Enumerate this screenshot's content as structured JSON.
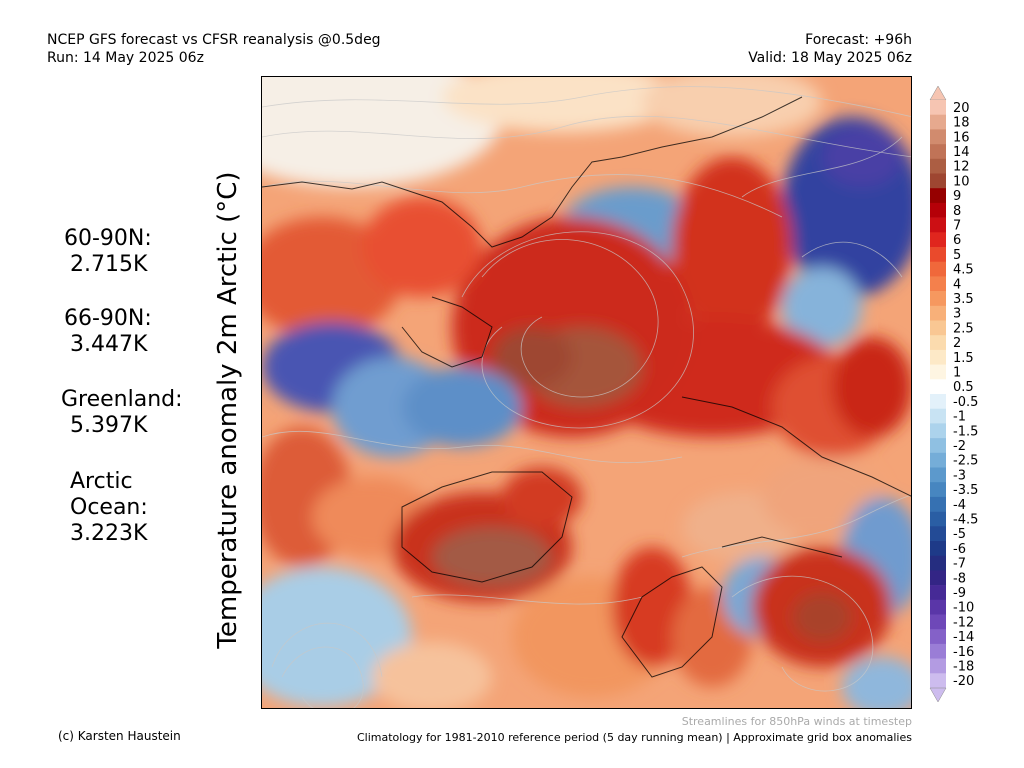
{
  "header": {
    "title_line1": "NCEP GFS forecast vs CFSR reanalysis @0.5deg",
    "title_line2": "Run: 14 May 2025 06z",
    "forecast": "Forecast: +96h",
    "valid": "Valid: 18 May 2025 06z"
  },
  "y_axis_label": "Temperature anomaly 2m Arctic (°C)",
  "stats": [
    {
      "label": "60-90N:",
      "value": "2.715K"
    },
    {
      "label": "66-90N:",
      "value": "3.447K"
    },
    {
      "label": "Greenland:",
      "value": "5.397K"
    },
    {
      "label_line1": "Arctic",
      "label_line2": "Ocean:",
      "value": "3.223K"
    }
  ],
  "colorbar": {
    "ticks": [
      "20",
      "18",
      "16",
      "14",
      "12",
      "10",
      "9",
      "8",
      "7",
      "6",
      "5",
      "4.5",
      "4",
      "3.5",
      "3",
      "2.5",
      "2",
      "1.5",
      "1",
      "0.5",
      "-0.5",
      "-1",
      "-1.5",
      "-2",
      "-2.5",
      "-3",
      "-3.5",
      "-4",
      "-4.5",
      "-5",
      "-6",
      "-7",
      "-8",
      "-9",
      "-10",
      "-12",
      "-14",
      "-16",
      "-18",
      "-20"
    ],
    "colors": [
      "#f6c5b2",
      "#e6a98e",
      "#d18b6e",
      "#c07357",
      "#ac5e43",
      "#9e4631",
      "#960000",
      "#b50008",
      "#cc0f14",
      "#e0261e",
      "#ea4a2c",
      "#f0683b",
      "#f4804c",
      "#f6985f",
      "#f8b079",
      "#f9c793",
      "#fbdbae",
      "#fde9c7",
      "#fef5e2",
      "#ffffff",
      "#e3f1fa",
      "#c8e3f3",
      "#acd3ec",
      "#8fc0e2",
      "#75add8",
      "#5c99cc",
      "#4786c0",
      "#3671b2",
      "#2a5ea4",
      "#234b96",
      "#1e3a88",
      "#252d80",
      "#332585",
      "#462a96",
      "#5a36a8",
      "#6e48b8",
      "#8461c8",
      "#9a7dd6",
      "#b39be2",
      "#cdbcee"
    ]
  },
  "footer": {
    "credit": "(c) Karsten Haustein",
    "streamlines": "Streamlines for 850hPa winds at timestep",
    "climatology": "Climatology for 1981-2010 reference period (5 day running mean) | Approximate grid box anomalies"
  }
}
